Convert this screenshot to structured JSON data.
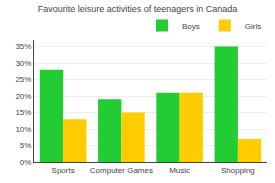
{
  "chart_data": {
    "type": "bar",
    "title": "Favourite leisure activities of teenagers in Canada",
    "categories": [
      "Sports",
      "Computer Games",
      "Music",
      "Shopping"
    ],
    "series": [
      {
        "name": "Boys",
        "color": "#22cc33",
        "values": [
          28,
          19,
          21,
          35
        ]
      },
      {
        "name": "Girls",
        "color": "#ffcc00",
        "values": [
          13,
          15,
          21,
          7
        ]
      }
    ],
    "ylim": [
      0,
      37
    ],
    "yticks": [
      {
        "value": 0,
        "label": "0%"
      },
      {
        "value": 5,
        "label": "5%"
      },
      {
        "value": 10,
        "label": "10%"
      },
      {
        "value": 15,
        "label": "15%"
      },
      {
        "value": 20,
        "label": "20%"
      },
      {
        "value": 25,
        "label": "25%"
      },
      {
        "value": 30,
        "label": "30%"
      },
      {
        "value": 35,
        "label": "35%"
      }
    ],
    "grid": true,
    "legend": "top"
  }
}
